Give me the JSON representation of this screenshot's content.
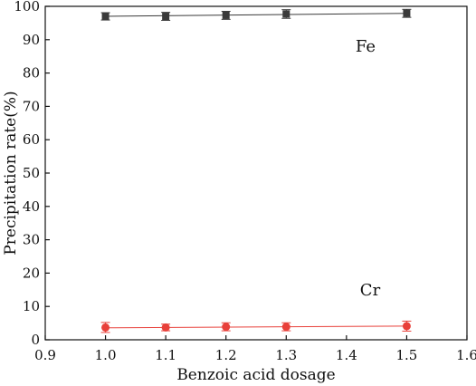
{
  "chart_data": {
    "type": "scatter",
    "title": "",
    "xlabel": "Benzoic acid dosage",
    "ylabel": "Precipitation rate(%)",
    "xlim": [
      0.9,
      1.6
    ],
    "ylim": [
      0,
      100
    ],
    "xticks": [
      "0.9",
      "1.0",
      "1.1",
      "1.2",
      "1.3",
      "1.4",
      "1.5",
      "1.6"
    ],
    "yticks": [
      "0",
      "10",
      "20",
      "30",
      "40",
      "50",
      "60",
      "70",
      "80",
      "90",
      "100"
    ],
    "grid": false,
    "legend": "none",
    "series": [
      {
        "name": "Fe",
        "marker": "square",
        "color": "#3a3a3a",
        "x": [
          1.0,
          1.1,
          1.2,
          1.3,
          1.5
        ],
        "y": [
          97.0,
          97.0,
          97.3,
          97.7,
          97.9
        ],
        "error": [
          1.1,
          1.2,
          1.2,
          1.3,
          1.2
        ],
        "fit": [
          97.0,
          97.9
        ]
      },
      {
        "name": "Cr",
        "marker": "circle",
        "color": "#e8403a",
        "x": [
          1.0,
          1.1,
          1.2,
          1.3,
          1.5
        ],
        "y": [
          3.7,
          3.7,
          3.9,
          3.9,
          4.1
        ],
        "error": [
          1.5,
          1.0,
          1.2,
          1.2,
          1.5
        ],
        "fit": [
          3.6,
          4.1
        ]
      }
    ]
  }
}
